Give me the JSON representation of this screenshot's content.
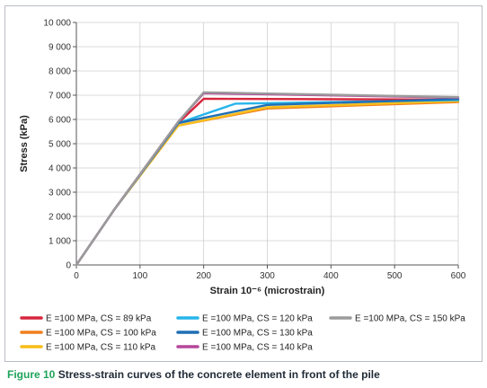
{
  "chart_data": {
    "type": "line",
    "xlabel": "Strain 10⁻⁶ (microstrain)",
    "ylabel": "Stress (kPa)",
    "xlim": [
      0,
      600
    ],
    "ylim": [
      0,
      10000
    ],
    "xticks": [
      0,
      100,
      200,
      300,
      400,
      500,
      600
    ],
    "yticks": [
      0,
      1000,
      2000,
      3000,
      4000,
      5000,
      6000,
      7000,
      8000,
      9000,
      10000
    ],
    "xtick_labels": [
      "0",
      "100",
      "200",
      "300",
      "400",
      "500",
      "600"
    ],
    "ytick_labels": [
      "0",
      "1 000",
      "2 000",
      "3 000",
      "4 000",
      "5 000",
      "6 000",
      "7 000",
      "8 000",
      "9 000",
      "10 000"
    ],
    "grid": true,
    "legend_position": "bottom",
    "series": [
      {
        "name": "E =100 MPa, CS = 89 kPa",
        "color": "#d7263d",
        "points": [
          [
            0,
            0
          ],
          [
            60,
            2300
          ],
          [
            160,
            5850
          ],
          [
            200,
            6850
          ],
          [
            600,
            6820
          ]
        ]
      },
      {
        "name": "E =100 MPa, CS = 100 kPa",
        "color": "#f07f1e",
        "points": [
          [
            0,
            0
          ],
          [
            60,
            2300
          ],
          [
            160,
            5750
          ],
          [
            300,
            6450
          ],
          [
            600,
            6720
          ]
        ]
      },
      {
        "name": "E =100 MPa, CS = 110 kPa",
        "color": "#f7be1a",
        "points": [
          [
            0,
            0
          ],
          [
            60,
            2300
          ],
          [
            160,
            5750
          ],
          [
            300,
            6500
          ],
          [
            600,
            6760
          ]
        ]
      },
      {
        "name": "E =100 MPa, CS = 120 kPa",
        "color": "#27b5ea",
        "points": [
          [
            0,
            0
          ],
          [
            60,
            2300
          ],
          [
            160,
            5850
          ],
          [
            250,
            6650
          ],
          [
            600,
            6800
          ]
        ]
      },
      {
        "name": "E =100 MPa, CS = 130 kPa",
        "color": "#1f6fb5",
        "points": [
          [
            0,
            0
          ],
          [
            60,
            2300
          ],
          [
            160,
            5850
          ],
          [
            300,
            6600
          ],
          [
            600,
            6840
          ]
        ]
      },
      {
        "name": "E =100 MPa, CS = 140 kPa",
        "color": "#b5479b",
        "points": [
          [
            0,
            0
          ],
          [
            60,
            2300
          ],
          [
            160,
            5900
          ],
          [
            200,
            7080
          ],
          [
            600,
            6900
          ]
        ]
      },
      {
        "name": "E =100 MPa, CS = 150 kPa",
        "color": "#9b9b9b",
        "points": [
          [
            0,
            0
          ],
          [
            60,
            2300
          ],
          [
            160,
            5900
          ],
          [
            200,
            7120
          ],
          [
            600,
            6920
          ]
        ]
      }
    ]
  },
  "caption": {
    "figure_label": "Figure 10",
    "text": "Stress-strain curves of the concrete element in front of the pile"
  }
}
